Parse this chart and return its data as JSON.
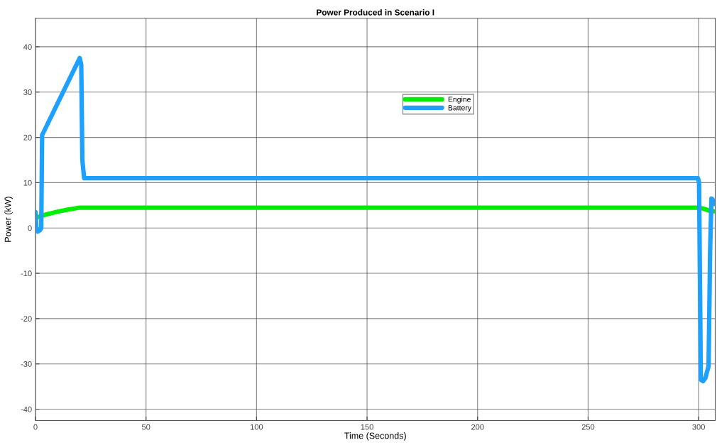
{
  "chart_data": {
    "type": "line",
    "title": "Power Produced in Scenario I",
    "xlabel": "Time (Seconds)",
    "ylabel": "Power (kW)",
    "xlim": [
      0,
      307.5
    ],
    "ylim": [
      -42.5,
      46.3
    ],
    "xticks": [
      0,
      50,
      100,
      150,
      200,
      250,
      300
    ],
    "yticks": [
      -40,
      -30,
      -20,
      -10,
      0,
      10,
      20,
      30,
      40
    ],
    "grid": true,
    "legend": "top",
    "line_style": "solid",
    "marker": "none",
    "series": [
      {
        "name": "Engine",
        "color": "#00ee00",
        "x": [
          0,
          1,
          5,
          10,
          15,
          20,
          50,
          100,
          150,
          200,
          250,
          300,
          302,
          305,
          306.8
        ],
        "values": [
          2.2,
          2.4,
          3.0,
          3.6,
          4.1,
          4.5,
          4.5,
          4.5,
          4.5,
          4.5,
          4.5,
          4.5,
          4.3,
          3.8,
          3.7
        ]
      },
      {
        "name": "Battery",
        "color": "#1ea0ff",
        "x": [
          0,
          0.5,
          1,
          2,
          2.6,
          3,
          4,
          8,
          12,
          16,
          20,
          20.7,
          21.2,
          22,
          50,
          100,
          150,
          200,
          250,
          299.7,
          300.2,
          301,
          302,
          303,
          304.5,
          305.2,
          305.8,
          306.3,
          306.8
        ],
        "values": [
          3.5,
          -0.5,
          -0.8,
          -0.5,
          0,
          20.5,
          21.5,
          25.5,
          29.5,
          33.5,
          37.5,
          36,
          15,
          11,
          11,
          11,
          11,
          11,
          11,
          11,
          10,
          -33.5,
          -33.8,
          -33.2,
          -30.5,
          -5,
          6.5,
          6.3,
          5.3
        ]
      }
    ]
  }
}
